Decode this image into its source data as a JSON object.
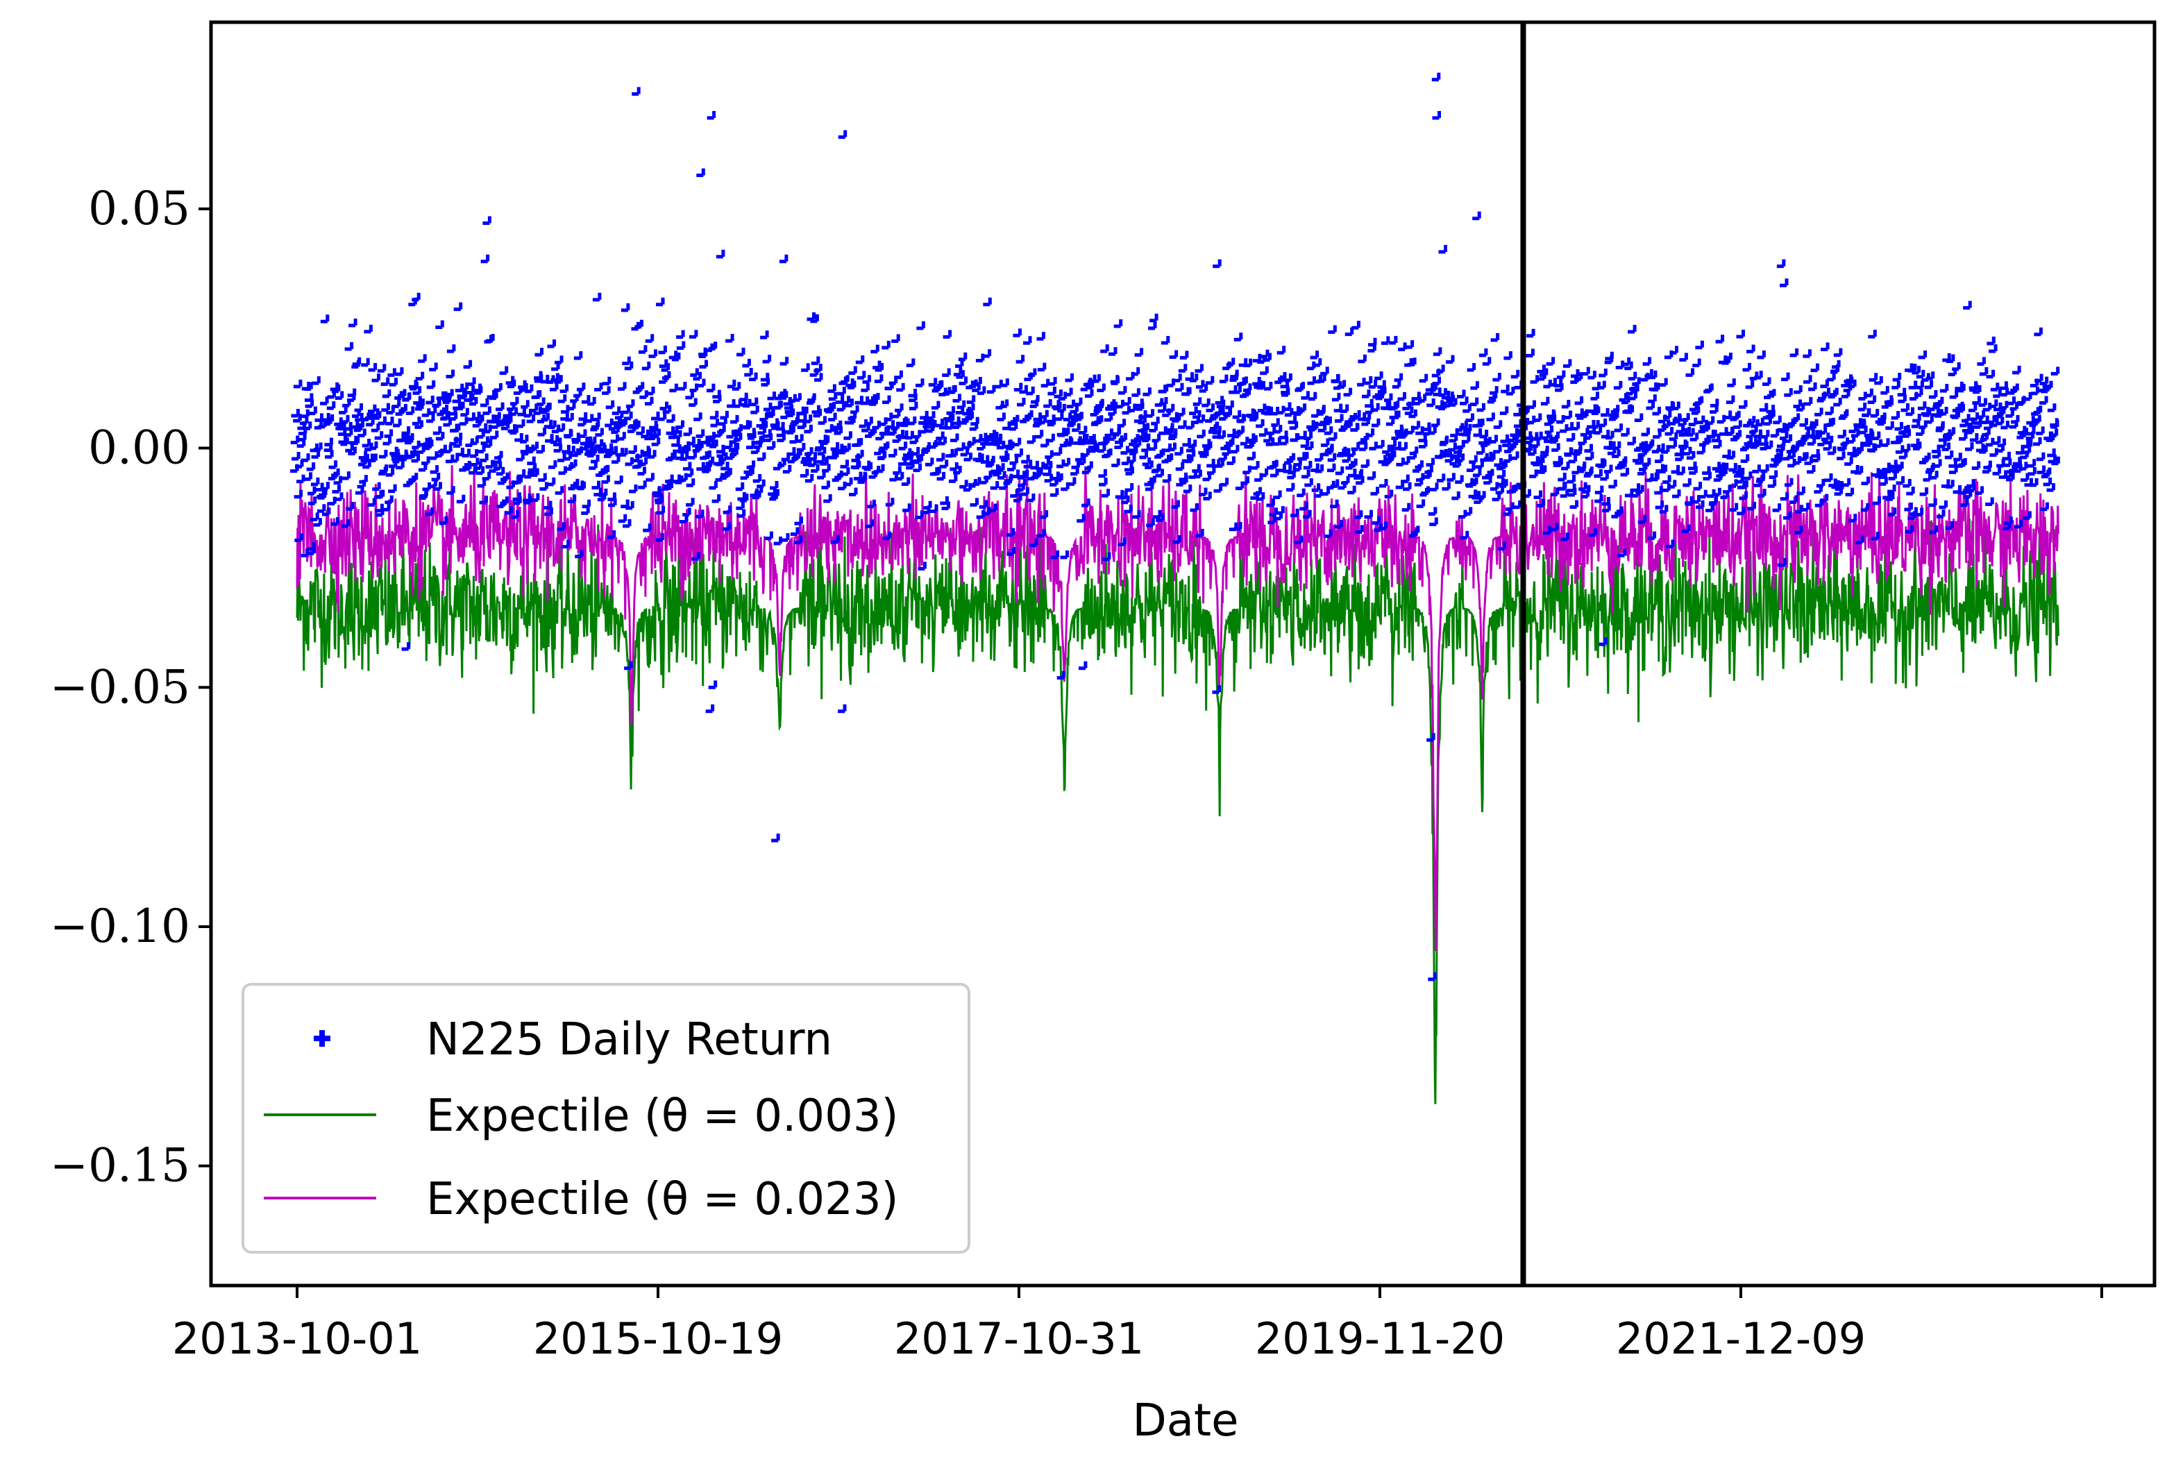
{
  "chart_data": {
    "type": "line",
    "xlabel": "Date",
    "ylabel": "",
    "title": "",
    "ylim": [
      -0.175,
      0.089
    ],
    "x_start": "2013-10-01",
    "x_end": "2023-09-29",
    "x_ticks": [
      "2013-10-01",
      "2015-10-19",
      "2017-10-31",
      "2019-11-20",
      "2021-12-09",
      ""
    ],
    "y_ticks": [
      0.05,
      0.0,
      -0.05,
      -0.1,
      -0.15
    ],
    "y_tick_labels": [
      "0.05",
      "0.00",
      "−0.05",
      "−0.10",
      "−0.15"
    ],
    "split_date": "2020-09-15",
    "legend_position": "lower-left",
    "series": [
      {
        "name": "N225 Daily Return",
        "style": "scatter-plus",
        "color": "#0000ff",
        "typical_range": [
          -0.03,
          0.03
        ],
        "notable_points": [
          {
            "x": "2013-11-05",
            "y": -0.022
          },
          {
            "x": "2014-05-20",
            "y": -0.042
          },
          {
            "x": "2014-06-10",
            "y": 0.031
          },
          {
            "x": "2014-09-05",
            "y": 0.029
          },
          {
            "x": "2014-11-04",
            "y": 0.047
          },
          {
            "x": "2014-10-31",
            "y": 0.039
          },
          {
            "x": "2015-06-20",
            "y": 0.031
          },
          {
            "x": "2015-08-24",
            "y": -0.046
          },
          {
            "x": "2015-09-09",
            "y": 0.074
          },
          {
            "x": "2016-01-21",
            "y": 0.057
          },
          {
            "x": "2016-02-12",
            "y": 0.069
          },
          {
            "x": "2016-02-09",
            "y": -0.055
          },
          {
            "x": "2016-02-15",
            "y": -0.05
          },
          {
            "x": "2016-03-02",
            "y": 0.04
          },
          {
            "x": "2016-06-24",
            "y": -0.082
          },
          {
            "x": "2016-07-11",
            "y": 0.039
          },
          {
            "x": "2016-11-09",
            "y": -0.055
          },
          {
            "x": "2016-11-10",
            "y": 0.065
          },
          {
            "x": "2018-02-06",
            "y": -0.048
          },
          {
            "x": "2018-03-23",
            "y": -0.046
          },
          {
            "x": "2018-12-25",
            "y": -0.051
          },
          {
            "x": "2018-12-26",
            "y": 0.038
          },
          {
            "x": "2020-03-13",
            "y": -0.061
          },
          {
            "x": "2020-03-16",
            "y": -0.111
          },
          {
            "x": "2020-03-24",
            "y": 0.077
          },
          {
            "x": "2020-03-25",
            "y": 0.069
          },
          {
            "x": "2020-04-07",
            "y": 0.041
          },
          {
            "x": "2020-06-16",
            "y": 0.048
          },
          {
            "x": "2021-03-05",
            "y": -0.041
          },
          {
            "x": "2022-03-09",
            "y": 0.038
          },
          {
            "x": "2022-03-15",
            "y": 0.034
          }
        ]
      },
      {
        "name": "Expectile (θ = 0.003)",
        "style": "line",
        "color": "#008000",
        "typical_range": [
          -0.045,
          -0.022
        ],
        "notable_points": [
          {
            "x": "2015-08-25",
            "y": -0.08
          },
          {
            "x": "2016-06-27",
            "y": -0.072
          },
          {
            "x": "2018-02-07",
            "y": -0.081
          },
          {
            "x": "2018-12-26",
            "y": -0.079
          },
          {
            "x": "2020-03-17",
            "y": -0.163
          },
          {
            "x": "2020-06-22",
            "y": -0.081
          }
        ]
      },
      {
        "name": "Expectile (θ = 0.023)",
        "style": "line",
        "color": "#c000c0",
        "typical_range": [
          -0.028,
          -0.009
        ],
        "notable_points": [
          {
            "x": "2015-08-25",
            "y": -0.07
          },
          {
            "x": "2016-06-27",
            "y": -0.055
          },
          {
            "x": "2018-02-07",
            "y": -0.062
          },
          {
            "x": "2018-12-26",
            "y": -0.058
          },
          {
            "x": "2020-03-17",
            "y": -0.14
          },
          {
            "x": "2020-06-22",
            "y": -0.061
          }
        ]
      }
    ]
  }
}
